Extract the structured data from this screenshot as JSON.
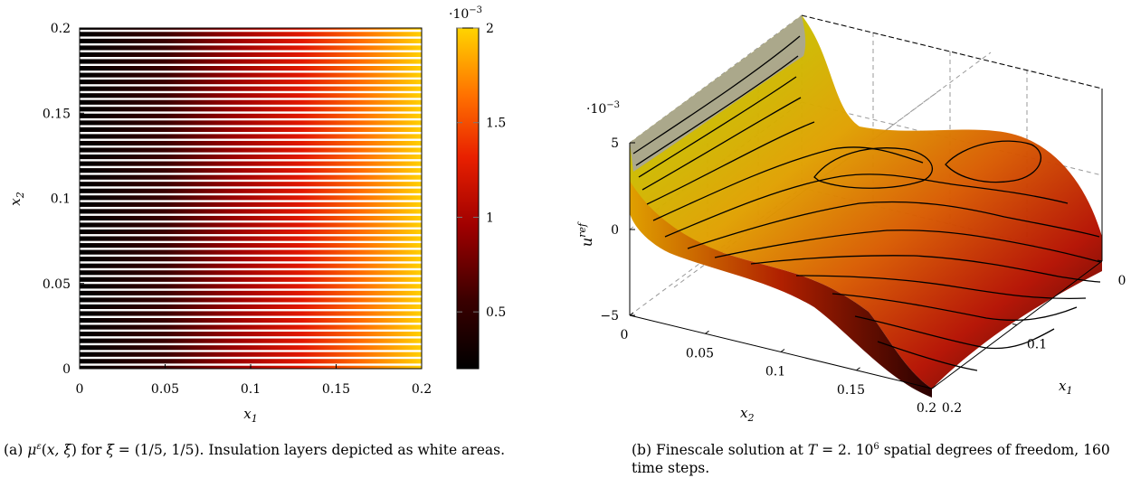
{
  "figure_a": {
    "caption": "(a) μ^ε(x, ξ) for ξ = (1/5, 1/5). Insulation layers depicted as white areas.",
    "chart_data": {
      "type": "heatmap",
      "title": "",
      "xlabel": "x_1",
      "ylabel": "x_2",
      "xlim": [
        0,
        0.2
      ],
      "ylim": [
        0,
        0.2
      ],
      "x_ticks": [
        "0",
        "0.05",
        "0.1",
        "0.15",
        "0.2"
      ],
      "y_ticks": [
        "0",
        "0.05",
        "0.1",
        "0.15",
        "0.2"
      ],
      "colorbar": {
        "range": [
          0.0002,
          0.002
        ],
        "ticks": [
          "0.5",
          "1",
          "1.5",
          "2"
        ],
        "scale_label": "·10^-3",
        "colormap": [
          "#000000",
          "#8b0000",
          "#ff2a00",
          "#ffd000"
        ]
      },
      "insulation_layers": 50
    }
  },
  "figure_b": {
    "caption": "(b) Finescale solution at T = 2. 10^6 spatial degrees of freedom, 160 time steps.",
    "chart_data": {
      "type": "surface",
      "title": "",
      "xlabel": "x_1",
      "ylabel": "x_2",
      "zlabel": "u^ref",
      "x_ticks": [
        "0",
        "0.1",
        "0.2"
      ],
      "y_ticks": [
        "0",
        "0.05",
        "0.1",
        "0.15",
        "0.2"
      ],
      "z_ticks": [
        "−5",
        "0",
        "5"
      ],
      "z_scale_label": "·10^-3",
      "zlim": [
        -0.005,
        0.005
      ],
      "colors": [
        "#8b8b8b",
        "#c8c800",
        "#e0a000",
        "#d04000",
        "#a00000",
        "#300000"
      ]
    }
  }
}
